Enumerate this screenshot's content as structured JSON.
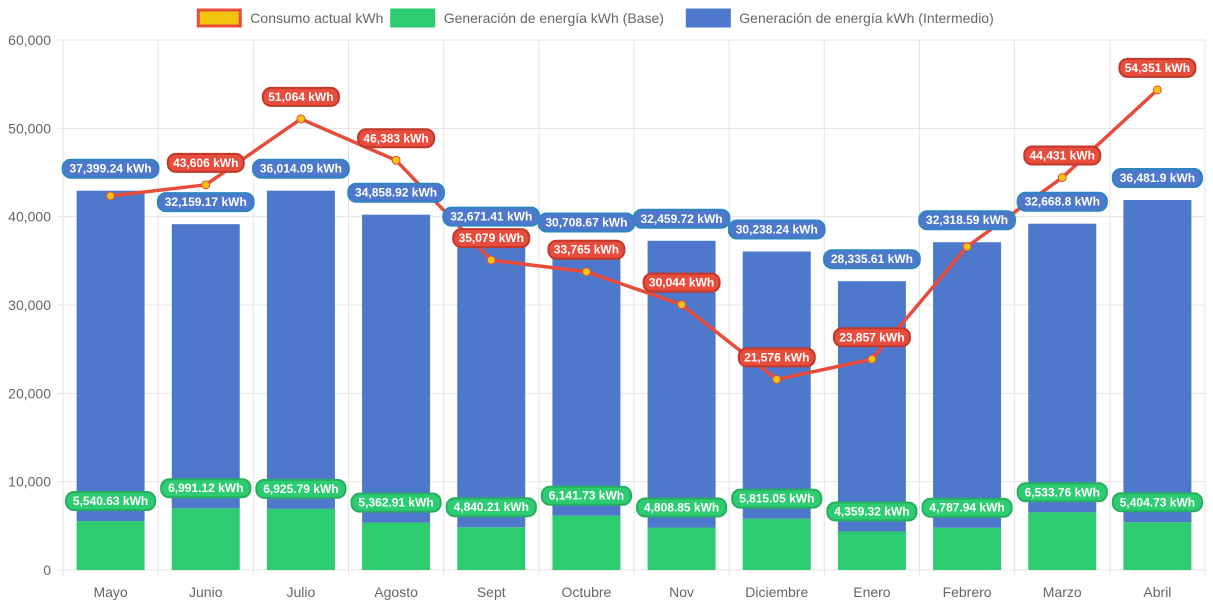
{
  "chart_data": {
    "type": "bar",
    "categories": [
      "Mayo",
      "Junio",
      "Julio",
      "Agosto",
      "Sept",
      "Octubre",
      "Nov",
      "Diciembre",
      "Enero",
      "Febrero",
      "Marzo",
      "Abril"
    ],
    "series": [
      {
        "name": "Consumo actual kWh",
        "render": "line",
        "color": "#e74c3c",
        "point_color": "#f1c40f",
        "values": [
          42350,
          43606,
          51064,
          46383,
          35079,
          33765,
          30044,
          21576,
          23857,
          36600,
          44431,
          54351
        ],
        "labels": [
          "",
          "43,606 kWh",
          "51,064 kWh",
          "46,383 kWh",
          "35,079 kWh",
          "33,765 kWh",
          "30,044 kWh",
          "21,576 kWh",
          "23,857 kWh",
          "",
          "44,431 kWh",
          "54,351 kWh"
        ]
      },
      {
        "name": "Generación de energía kWh (Base)",
        "render": "stacked-bar",
        "color": "#2ecc71",
        "values": [
          5540.63,
          6991.12,
          6925.79,
          5362.91,
          4840.21,
          6141.73,
          4808.85,
          5815.05,
          4359.32,
          4787.94,
          6533.76,
          5404.73
        ],
        "labels": [
          "5,540.63 kWh",
          "6,991.12 kWh",
          "6,925.79 kWh",
          "5,362.91 kWh",
          "4,840.21 kWh",
          "6,141.73 kWh",
          "4,808.85 kWh",
          "5,815.05 kWh",
          "4,359.32 kWh",
          "4,787.94 kWh",
          "6,533.76 kWh",
          "5,404.73 kWh"
        ]
      },
      {
        "name": "Generación de energía kWh (Intermedio)",
        "render": "stacked-bar",
        "color": "#4e78cc",
        "values": [
          37399.24,
          32159.17,
          36014.09,
          34858.92,
          32671.41,
          30708.67,
          32459.72,
          30238.24,
          28335.61,
          32318.59,
          32668.8,
          36481.9
        ],
        "labels": [
          "37,399.24 kWh",
          "32,159.17 kWh",
          "36,014.09 kWh",
          "34,858.92 kWh",
          "32,671.41 kWh",
          "30,708.67 kWh",
          "32,459.72 kWh",
          "30,238.24 kWh",
          "28,335.61 kWh",
          "32,318.59 kWh",
          "32,668.8 kWh",
          "36,481.9 kWh"
        ]
      }
    ],
    "yticks": [
      "0",
      "10,000",
      "20,000",
      "30,000",
      "40,000",
      "50,000",
      "60,000"
    ],
    "ylim": [
      0,
      60000
    ],
    "grid": true,
    "legend_position": "top-center",
    "colors": {
      "grid": "#e5e5e5",
      "axis_text": "#666666",
      "line_label_border": "#c0392b",
      "base_label_border": "#27ae60",
      "intermediate_label_border": "#2e86c1"
    }
  }
}
